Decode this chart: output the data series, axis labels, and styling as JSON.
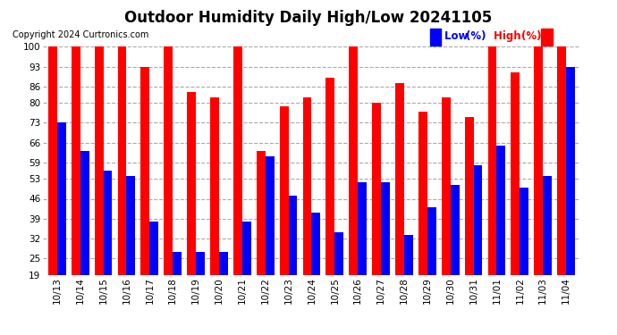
{
  "title": "Outdoor Humidity Daily High/Low 20241105",
  "copyright": "Copyright 2024 Curtronics.com",
  "categories": [
    "10/13",
    "10/14",
    "10/15",
    "10/16",
    "10/17",
    "10/18",
    "10/19",
    "10/20",
    "10/21",
    "10/22",
    "10/23",
    "10/24",
    "10/25",
    "10/26",
    "10/27",
    "10/28",
    "10/29",
    "10/30",
    "10/31",
    "11/01",
    "11/02",
    "11/03",
    "11/04"
  ],
  "high_values": [
    100,
    100,
    100,
    100,
    93,
    100,
    84,
    82,
    100,
    63,
    79,
    82,
    89,
    100,
    80,
    87,
    77,
    82,
    75,
    100,
    91,
    100,
    100
  ],
  "low_values": [
    73,
    63,
    56,
    54,
    38,
    27,
    27,
    27,
    38,
    61,
    47,
    41,
    34,
    52,
    52,
    33,
    43,
    51,
    58,
    65,
    50,
    54,
    93
  ],
  "high_color": "#ff0000",
  "low_color": "#0000ff",
  "background_color": "#ffffff",
  "grid_color": "#aaaaaa",
  "ylim": [
    19,
    100
  ],
  "yticks": [
    19,
    25,
    32,
    39,
    46,
    53,
    59,
    66,
    73,
    80,
    86,
    93,
    100
  ],
  "bar_width": 0.38,
  "title_fontsize": 12,
  "tick_fontsize": 7.5,
  "legend_fontsize": 8.5,
  "copyright_fontsize": 7
}
